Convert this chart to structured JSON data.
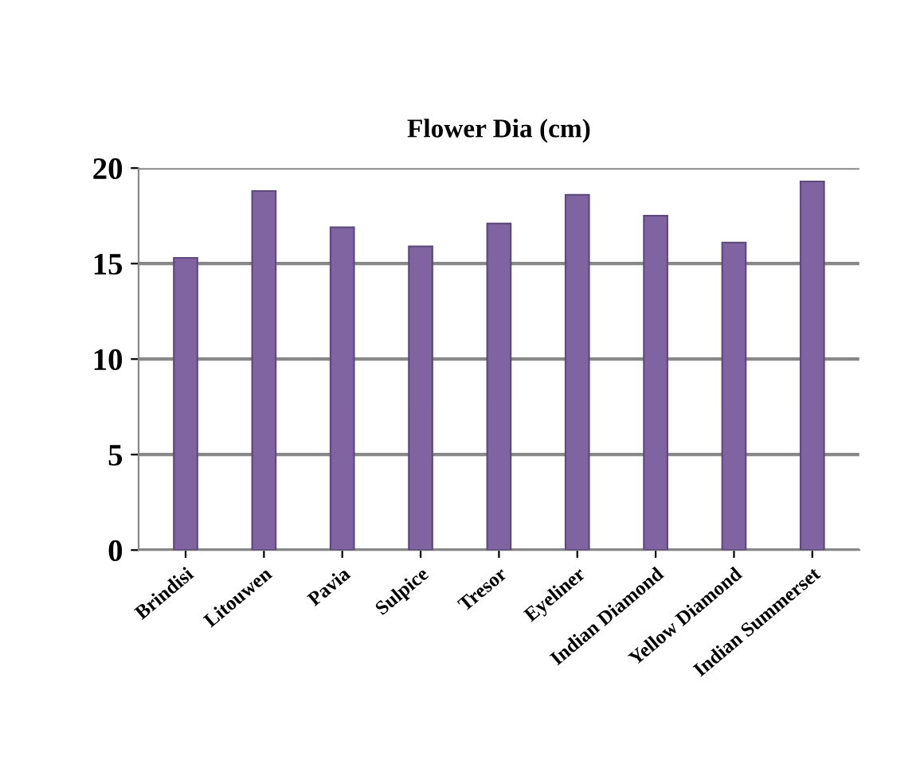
{
  "chart_data": {
    "type": "bar",
    "title": "Flower Dia (cm)",
    "categories": [
      "Brindisi",
      "Litouwen",
      "Pavia",
      "Sulpice",
      "Tresor",
      "Eyeliner",
      "Indian Diamond",
      "Yellow Diamond",
      "Indian Summerset"
    ],
    "values": [
      15.3,
      18.8,
      16.9,
      15.9,
      17.1,
      18.6,
      17.5,
      16.1,
      19.3
    ],
    "color": "#8064a2",
    "ylim": [
      0,
      20
    ],
    "yticks": [
      0,
      5,
      10,
      15,
      20
    ],
    "grid": "y",
    "legend": false
  }
}
